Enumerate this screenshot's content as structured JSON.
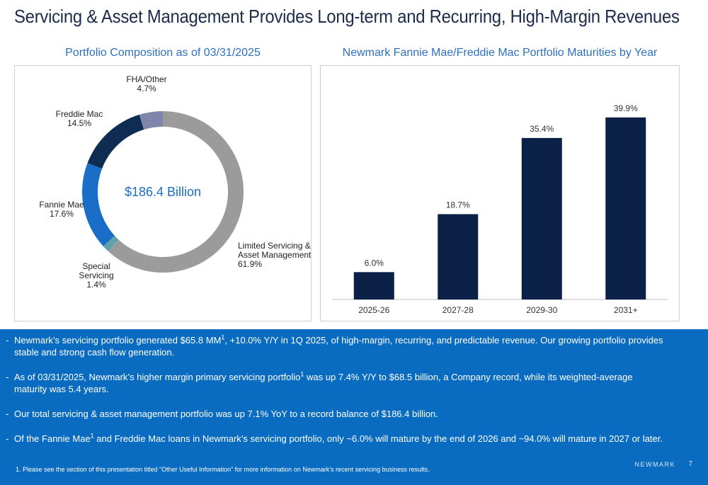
{
  "title": "Servicing & Asset Management Provides Long-term and Recurring, High-Margin Revenues",
  "pie_panel_title": "Portfolio Composition as of 03/31/2025",
  "bar_panel_title": "Newmark Fannie Mae/Freddie Mac Portfolio Maturities by Year",
  "chart_data": [
    {
      "type": "pie",
      "title": "Portfolio Composition as of 03/31/2025",
      "center_label": "$186.4 Billion",
      "slices": [
        {
          "name_lines": [
            "Limited Servicing &",
            "Asset Management"
          ],
          "value_label": "61.9%",
          "value": 61.9,
          "color": "#9b9b9b"
        },
        {
          "name_lines": [
            "Special",
            "Servicing"
          ],
          "value_label": "1.4%",
          "value": 1.4,
          "color": "#5fa3a8"
        },
        {
          "name_lines": [
            "Fannie Mae"
          ],
          "value_label": "17.6%",
          "value": 17.6,
          "color": "#1a6ec8"
        },
        {
          "name_lines": [
            "Freddie Mac"
          ],
          "value_label": "14.5%",
          "value": 14.5,
          "color": "#0f2d52"
        },
        {
          "name_lines": [
            "FHA/Other"
          ],
          "value_label": "4.7%",
          "value": 4.7,
          "color": "#7f86aa"
        }
      ]
    },
    {
      "type": "bar",
      "title": "Newmark Fannie Mae/Freddie Mac Portfolio Maturities by Year",
      "categories": [
        "2025-26",
        "2027-28",
        "2029-30",
        "2031+"
      ],
      "values": [
        6.0,
        18.7,
        35.4,
        39.9
      ],
      "value_labels": [
        "6.0%",
        "18.7%",
        "35.4%",
        "39.9%"
      ],
      "ylim": [
        0,
        45
      ],
      "bar_color": "#0b2046",
      "grid": false
    }
  ],
  "bullets": [
    {
      "before": "Newmark’s servicing portfolio generated $65.8 MM",
      "sup": "1",
      "after": ", +10.0% Y/Y in 1Q 2025, of high-margin, recurring, and predictable revenue. Our growing portfolio provides stable and strong cash flow generation."
    },
    {
      "before": "As of 03/31/2025, Newmark’s higher margin primary servicing portfolio",
      "sup": "1",
      "after": " was up 7.4% Y/Y to $68.5 billion, a Company record, while its weighted-average maturity was 5.4 years."
    },
    {
      "before": "Our total servicing & asset management portfolio was up 7.1% YoY to a record balance of $186.4 billion.",
      "sup": "",
      "after": ""
    },
    {
      "before": "Of the Fannie Mae",
      "sup": "1",
      "after": " and Freddie Mac loans in Newmark’s servicing portfolio, only ~6.0% will mature by the end of 2026 and ~94.0% will mature in 2027 or later."
    }
  ],
  "bullet_marker": "-",
  "footnote": "1. Please see the section of this presentation titled “Other Useful Information” for more information on Newmark’s recent servicing business results.",
  "brand": "NEWMARK",
  "page_number": "7"
}
